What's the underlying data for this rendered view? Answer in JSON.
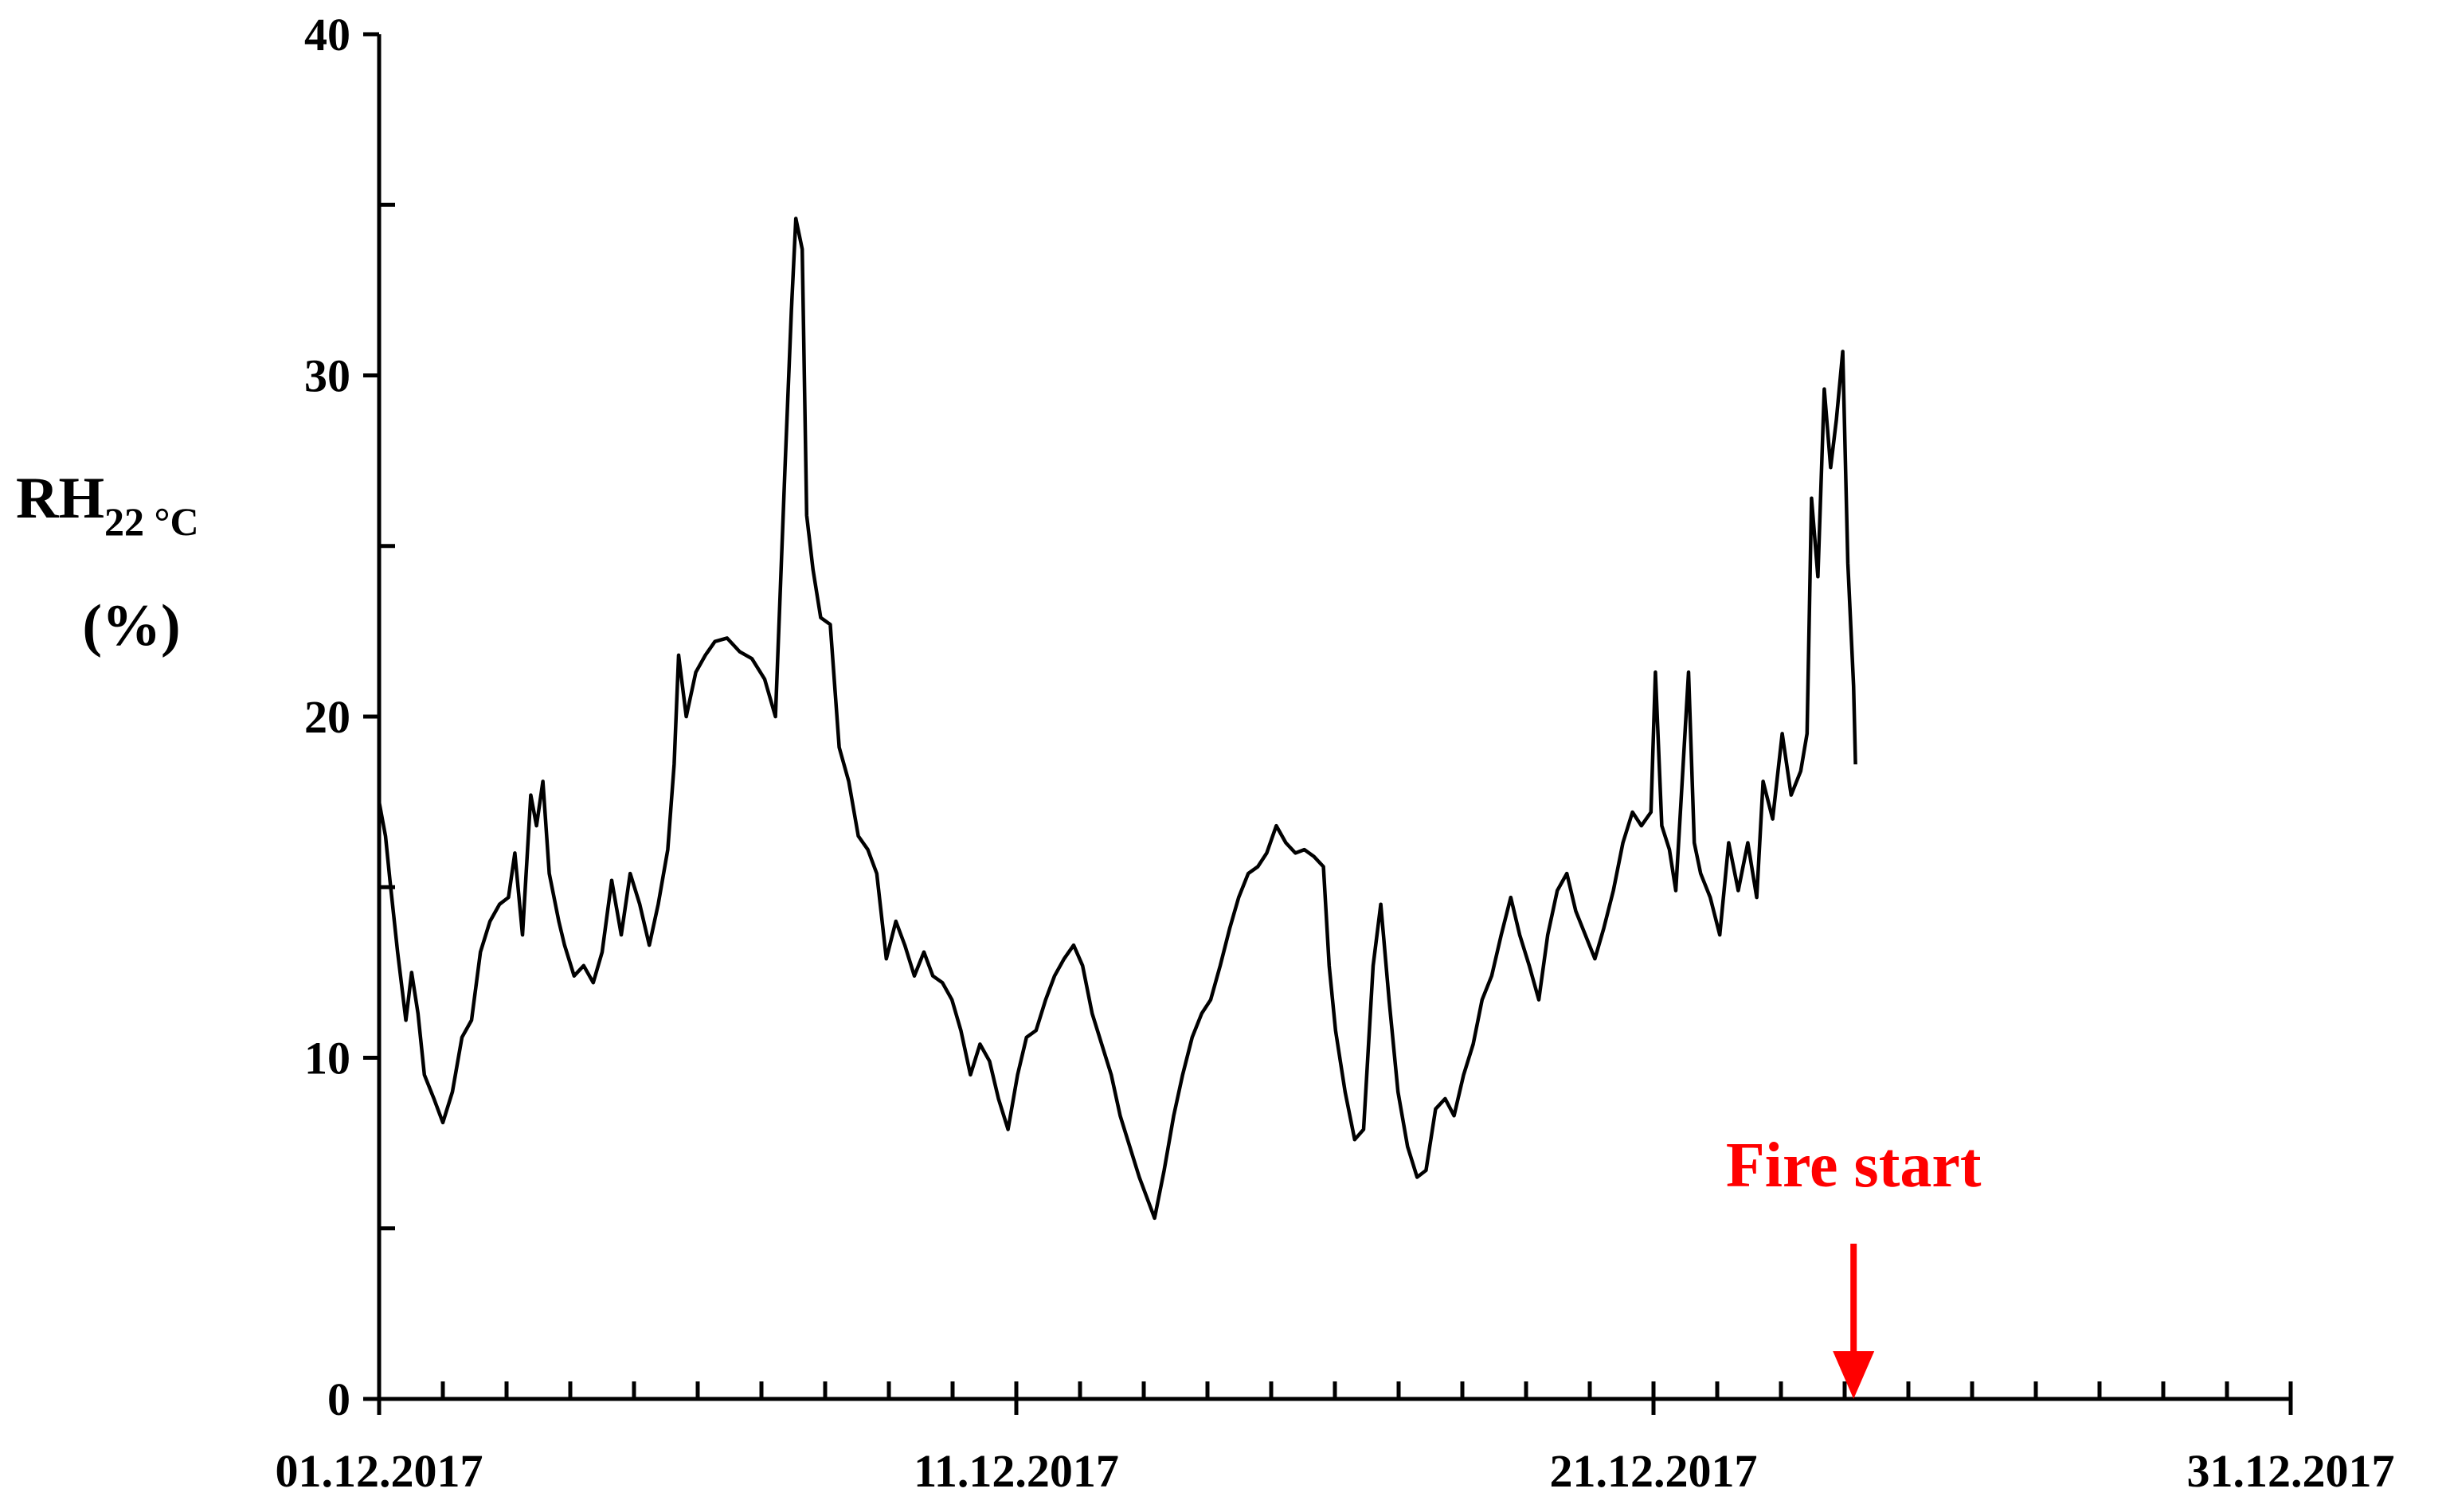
{
  "chart_data": {
    "type": "line",
    "ylabel": [
      "RH",
      "22 °C",
      "(%)"
    ],
    "xlim": [
      1,
      31
    ],
    "xticks": [
      {
        "value": 1,
        "label": "01.12.2017"
      },
      {
        "value": 11,
        "label": "11.12.2017"
      },
      {
        "value": 21,
        "label": "21.12.2017"
      },
      {
        "value": 31,
        "label": "31.12.2017"
      }
    ],
    "xminorticks": [
      2,
      3,
      4,
      5,
      6,
      7,
      8,
      9,
      10,
      12,
      13,
      14,
      15,
      16,
      17,
      18,
      19,
      20,
      22,
      23,
      24,
      25,
      26,
      27,
      28,
      29,
      30
    ],
    "ylim": [
      0,
      40
    ],
    "yticks": [
      0,
      10,
      20,
      30,
      40
    ],
    "yminorticks": [
      5,
      15,
      25,
      35
    ],
    "grid": false,
    "annotation": {
      "text": "Fire start",
      "x": 24.14,
      "color": "#ff0000"
    },
    "x": [
      1.0,
      1.1,
      1.17,
      1.29,
      1.42,
      1.51,
      1.61,
      1.71,
      1.86,
      2.0,
      2.15,
      2.3,
      2.45,
      2.59,
      2.74,
      2.89,
      3.03,
      3.13,
      3.25,
      3.38,
      3.47,
      3.57,
      3.67,
      3.82,
      3.91,
      4.06,
      4.21,
      4.36,
      4.5,
      4.65,
      4.8,
      4.94,
      5.09,
      5.24,
      5.38,
      5.53,
      5.63,
      5.7,
      5.82,
      5.97,
      6.12,
      6.27,
      6.46,
      6.66,
      6.85,
      7.05,
      7.22,
      7.37,
      7.47,
      7.54,
      7.64,
      7.71,
      7.81,
      7.93,
      8.08,
      8.22,
      8.37,
      8.52,
      8.67,
      8.81,
      8.96,
      9.11,
      9.25,
      9.4,
      9.55,
      9.69,
      9.84,
      9.99,
      10.13,
      10.28,
      10.43,
      10.58,
      10.72,
      10.87,
      11.02,
      11.16,
      11.31,
      11.46,
      11.6,
      11.75,
      11.9,
      12.04,
      12.19,
      12.34,
      12.49,
      12.63,
      12.78,
      12.93,
      13.07,
      13.17,
      13.32,
      13.47,
      13.61,
      13.76,
      13.91,
      14.05,
      14.2,
      14.35,
      14.49,
      14.64,
      14.79,
      14.93,
      15.08,
      15.23,
      15.38,
      15.52,
      15.67,
      15.82,
      15.91,
      16.01,
      16.16,
      16.31,
      16.45,
      16.6,
      16.72,
      16.85,
      16.99,
      17.14,
      17.29,
      17.43,
      17.58,
      17.73,
      17.87,
      18.02,
      18.17,
      18.31,
      18.46,
      18.61,
      18.76,
      18.9,
      19.05,
      19.2,
      19.34,
      19.49,
      19.64,
      19.78,
      19.93,
      20.08,
      20.22,
      20.37,
      20.52,
      20.67,
      20.81,
      20.96,
      21.03,
      21.13,
      21.25,
      21.35,
      21.45,
      21.55,
      21.64,
      21.74,
      21.89,
      22.04,
      22.18,
      22.33,
      22.48,
      22.62,
      22.72,
      22.87,
      23.02,
      23.16,
      23.31,
      23.41,
      23.48,
      23.58,
      23.68,
      23.78,
      23.87,
      23.97,
      24.05,
      24.14,
      24.17
    ],
    "series": [
      {
        "color": "#000000",
        "values": [
          17.5,
          16.5,
          15.2,
          13.1,
          11.1,
          12.5,
          11.3,
          9.5,
          8.8,
          8.1,
          9.0,
          10.6,
          11.1,
          13.1,
          14.0,
          14.5,
          14.7,
          16.0,
          13.6,
          17.7,
          16.8,
          18.1,
          15.4,
          14.0,
          13.3,
          12.4,
          12.7,
          12.2,
          13.1,
          15.2,
          13.6,
          15.4,
          14.5,
          13.3,
          14.5,
          16.1,
          18.6,
          21.8,
          20.0,
          21.3,
          21.8,
          22.2,
          22.3,
          21.9,
          21.7,
          21.1,
          20.0,
          27.3,
          31.9,
          34.6,
          33.7,
          25.9,
          24.3,
          22.9,
          22.7,
          19.1,
          18.1,
          16.5,
          16.1,
          15.4,
          12.9,
          14.0,
          13.3,
          12.4,
          13.1,
          12.4,
          12.2,
          11.7,
          10.8,
          9.5,
          10.4,
          9.9,
          8.8,
          7.9,
          9.5,
          10.6,
          10.8,
          11.7,
          12.4,
          12.9,
          13.3,
          12.7,
          11.3,
          10.4,
          9.5,
          8.3,
          7.4,
          6.5,
          5.8,
          5.3,
          6.7,
          8.3,
          9.5,
          10.6,
          11.3,
          11.7,
          12.7,
          13.8,
          14.7,
          15.4,
          15.6,
          16.0,
          16.8,
          16.3,
          16.0,
          16.1,
          15.9,
          15.6,
          12.7,
          10.8,
          9.0,
          7.6,
          7.9,
          12.7,
          14.5,
          11.7,
          9.0,
          7.4,
          6.5,
          6.7,
          8.5,
          8.8,
          8.3,
          9.5,
          10.4,
          11.7,
          12.4,
          13.6,
          14.7,
          13.6,
          12.7,
          11.7,
          13.6,
          14.9,
          15.4,
          14.3,
          13.6,
          12.9,
          13.8,
          14.9,
          16.3,
          17.2,
          16.8,
          17.2,
          21.3,
          16.8,
          16.1,
          14.9,
          18.1,
          21.3,
          16.3,
          15.4,
          14.7,
          13.6,
          16.3,
          14.9,
          16.3,
          14.7,
          18.1,
          17.0,
          19.5,
          17.7,
          18.4,
          19.5,
          26.4,
          24.1,
          29.6,
          27.3,
          28.7,
          30.7,
          24.5,
          20.9,
          18.6
        ]
      }
    ]
  }
}
